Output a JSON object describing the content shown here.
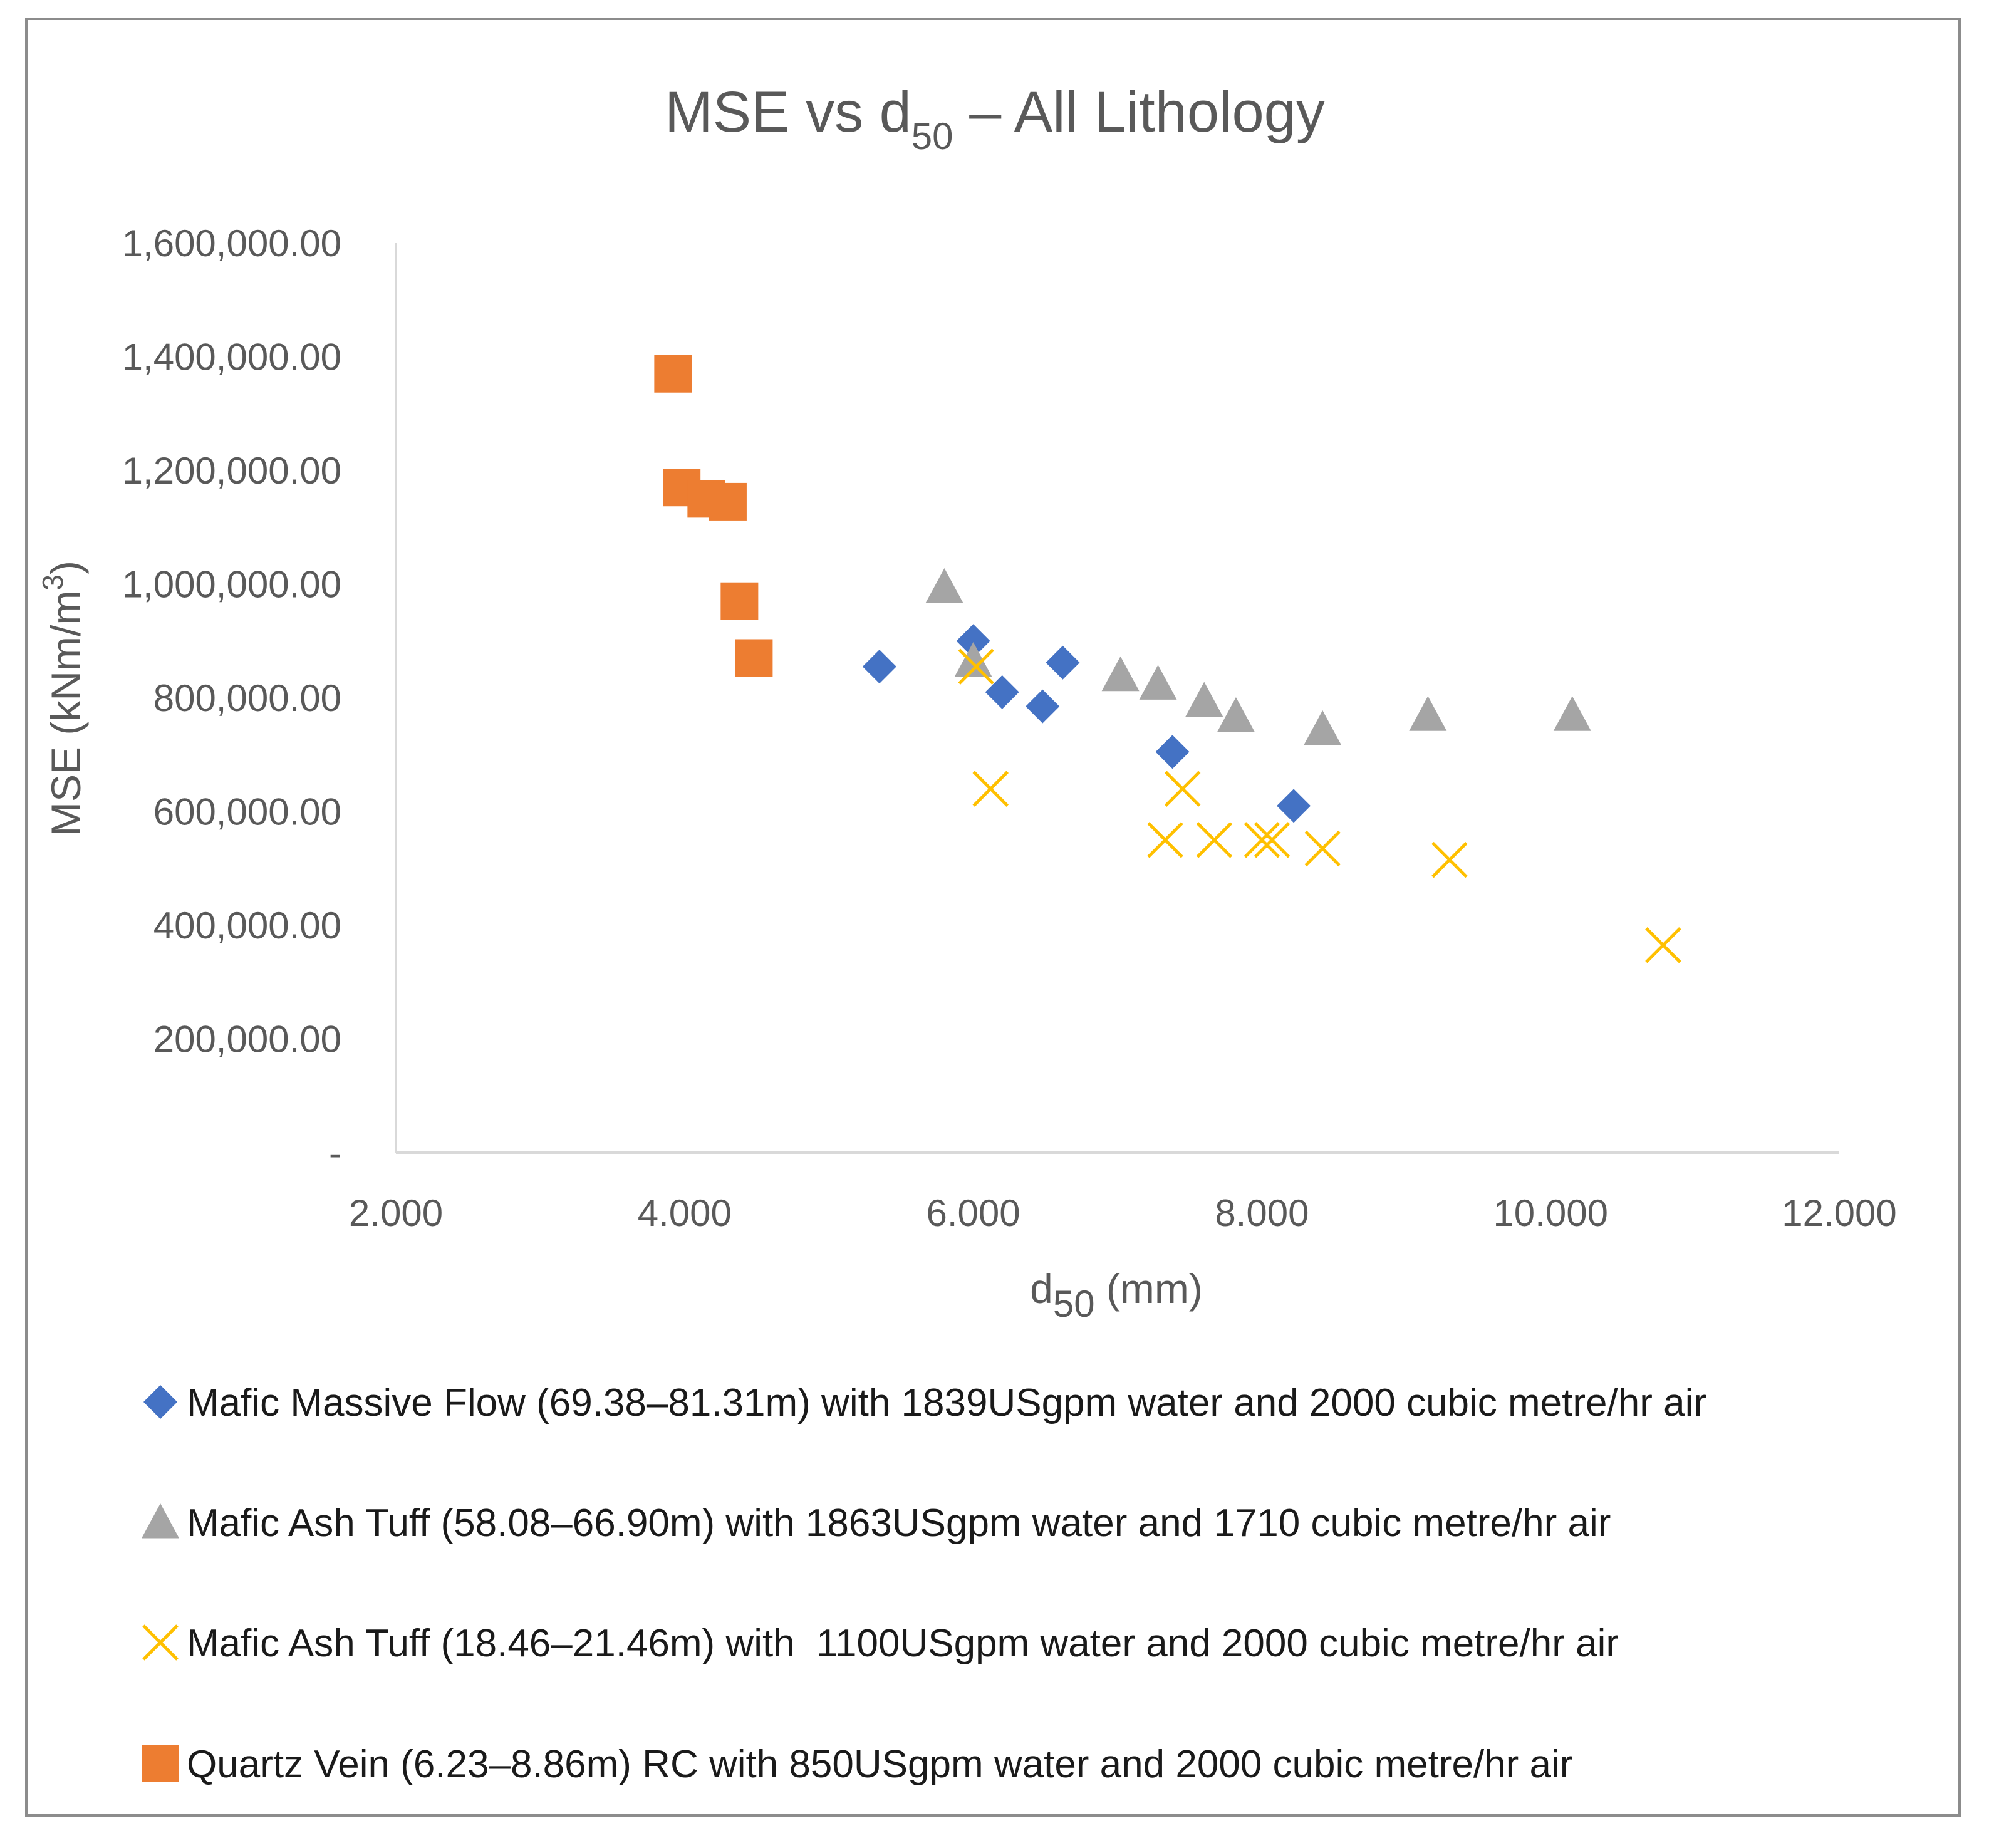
{
  "chart_data": {
    "type": "scatter",
    "title": "MSE vs d50 – All Lithology",
    "title_main": "MSE vs d",
    "title_sub": "50",
    "title_tail": " – All Lithology",
    "xlabel": "d50 (mm)",
    "xlabel_main": "d",
    "xlabel_sub": "50",
    "xlabel_tail": " (mm)",
    "ylabel": "MSE (kNm/m3)",
    "ylabel_main": "MSE (kNm/m",
    "ylabel_sup": "3",
    "ylabel_tail": ")",
    "xlim": [
      2,
      12
    ],
    "ylim": [
      0,
      1600000
    ],
    "x_ticks": [
      2,
      4,
      6,
      8,
      10,
      12
    ],
    "x_tick_labels": [
      "2.000",
      "4.000",
      "6.000",
      "8.000",
      "10.000",
      "12.000"
    ],
    "y_ticks": [
      0,
      200000,
      400000,
      600000,
      800000,
      1000000,
      1200000,
      1400000,
      1600000
    ],
    "y_tick_labels": [
      "-",
      "200,000.00",
      "400,000.00",
      "600,000.00",
      "800,000.00",
      "1,000,000.00",
      "1,200,000.00",
      "1,400,000.00",
      "1,600,000.00"
    ],
    "grid": false,
    "legend_position": "bottom",
    "series": [
      {
        "name": "Mafic Massive Flow (69.38–81.31m) with 1839USgpm water and 2000 cubic metre/hr air",
        "marker": "diamond",
        "color": "#4472C4",
        "points": [
          {
            "x": 5.35,
            "y": 855000
          },
          {
            "x": 6.0,
            "y": 900000
          },
          {
            "x": 6.2,
            "y": 810000
          },
          {
            "x": 6.48,
            "y": 785000
          },
          {
            "x": 6.62,
            "y": 862000
          },
          {
            "x": 7.38,
            "y": 705000
          },
          {
            "x": 8.22,
            "y": 610000
          }
        ]
      },
      {
        "name": "Mafic Ash Tuff (58.08–66.90m) with 1863USgpm water and 1710 cubic metre/hr air",
        "marker": "triangle",
        "color": "#A5A5A5",
        "points": [
          {
            "x": 5.8,
            "y": 995000
          },
          {
            "x": 6.0,
            "y": 865000
          },
          {
            "x": 7.02,
            "y": 840000
          },
          {
            "x": 7.28,
            "y": 825000
          },
          {
            "x": 7.6,
            "y": 795000
          },
          {
            "x": 7.82,
            "y": 768000
          },
          {
            "x": 8.42,
            "y": 745000
          },
          {
            "x": 9.15,
            "y": 770000
          },
          {
            "x": 10.15,
            "y": 770000
          }
        ]
      },
      {
        "name": "Mafic Ash Tuff (18.46–21.46m) with  1100USgpm water and 2000 cubic metre/hr air",
        "marker": "x",
        "color": "#FFC000",
        "points": [
          {
            "x": 6.02,
            "y": 855000
          },
          {
            "x": 6.12,
            "y": 640000
          },
          {
            "x": 7.33,
            "y": 550000
          },
          {
            "x": 7.45,
            "y": 640000
          },
          {
            "x": 7.67,
            "y": 550000
          },
          {
            "x": 8.0,
            "y": 550000
          },
          {
            "x": 8.07,
            "y": 550000
          },
          {
            "x": 8.42,
            "y": 535000
          },
          {
            "x": 9.3,
            "y": 515000
          },
          {
            "x": 10.78,
            "y": 365000
          }
        ]
      },
      {
        "name": "Quartz Vein (6.23–8.86m) RC with 850USgpm water and 2000 cubic metre/hr air",
        "marker": "square",
        "color": "#ED7D31",
        "points": [
          {
            "x": 3.92,
            "y": 1370000
          },
          {
            "x": 3.98,
            "y": 1170000
          },
          {
            "x": 4.15,
            "y": 1150000
          },
          {
            "x": 4.3,
            "y": 1145000
          },
          {
            "x": 4.38,
            "y": 970000
          },
          {
            "x": 4.48,
            "y": 870000
          }
        ]
      }
    ]
  }
}
